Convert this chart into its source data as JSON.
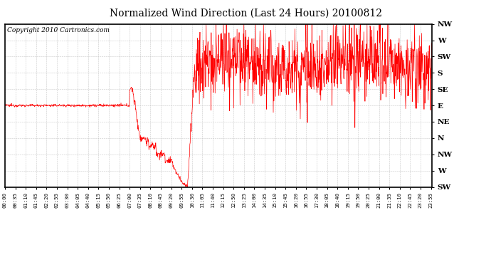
{
  "title": "Normalized Wind Direction (Last 24 Hours) 20100812",
  "copyright_text": "Copyright 2010 Cartronics.com",
  "y_labels": [
    "NW",
    "W",
    "SW",
    "S",
    "SE",
    "E",
    "NE",
    "N",
    "NW",
    "W",
    "SW"
  ],
  "y_tick_positions": [
    10,
    9,
    8,
    7,
    6,
    5,
    4,
    3,
    2,
    1,
    0
  ],
  "y_min": 0,
  "y_max": 10,
  "line_color": "#ff0000",
  "background_color": "#ffffff",
  "grid_color": "#bbbbbb",
  "title_fontsize": 10,
  "copyright_fontsize": 6.5
}
